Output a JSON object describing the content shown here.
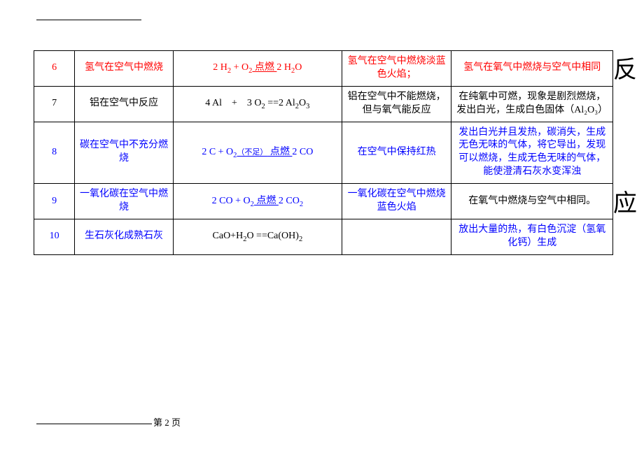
{
  "page_label": "第 2 页",
  "side_label": {
    "char1": "反",
    "char2": "应"
  },
  "colors": {
    "red": "#ff0000",
    "blue": "#0000ff",
    "text": "#000000",
    "border": "#000000",
    "bg": "#ffffff"
  },
  "rows": [
    {
      "num": "6",
      "color": "red",
      "name": "氢气在空气中燃烧",
      "eq_pre": "2 H",
      "eq_sub1": "2",
      "eq_mid1": " + O",
      "eq_sub2": "2",
      "eq_cond": " 点燃 ",
      "eq_post": "2 H",
      "eq_sub3": "2",
      "eq_tail": "O",
      "phen": "氢气在空气中燃烧淡蓝色火焰；",
      "note": "氢气在氧气中燃烧与空气中相同"
    },
    {
      "num": "7",
      "color": "black",
      "name": "铝在空气中反应",
      "eq_plain_pre": "4 Al　+　3 O",
      "eq_plain_sub1": "2",
      "eq_plain_mid": " ==2 Al",
      "eq_plain_sub2": "2",
      "eq_plain_mid2": "O",
      "eq_plain_sub3": "3",
      "phen": "铝在空气中不能燃烧，但与氧气能反应",
      "note": "在纯氧中可燃，现象是剧烈燃烧，发出白光，生成白色固体（Al₂O₃）"
    },
    {
      "num": "8",
      "color": "blue",
      "name": "碳在空气中不充分燃烧",
      "eq_pre": "2 C + O",
      "eq_sub1": "2",
      "eq_note": "（不足）",
      "eq_cond": " 点燃 ",
      "eq_post": "2 CO",
      "phen": "在空气中保持红热",
      "note": "发出白光并且发热，碳消失，生成无色无味的气体，将它导出，发现可以燃烧，生成无色无味的气体，能使澄清石灰水变浑浊"
    },
    {
      "num": "9",
      "color": "blue",
      "name": "一氧化碳在空气中燃烧",
      "eq_pre": "2 CO + O",
      "eq_sub1": "2",
      "eq_cond": " 点燃 ",
      "eq_post": " 2 CO",
      "eq_sub2": "2",
      "phen": "一氧化碳在空气中燃烧蓝色火焰",
      "note": "在氧气中燃烧与空气中相同。"
    },
    {
      "num": "10",
      "color": "blue",
      "name": "生石灰化成熟石灰",
      "eq_plain_pre": "CaO+H",
      "eq_plain_sub1": "2",
      "eq_plain_mid": "O ==Ca(OH)",
      "eq_plain_sub2": "2",
      "phen": "",
      "note": "放出大量的热，有白色沉淀（氢氧化钙）生成"
    }
  ]
}
